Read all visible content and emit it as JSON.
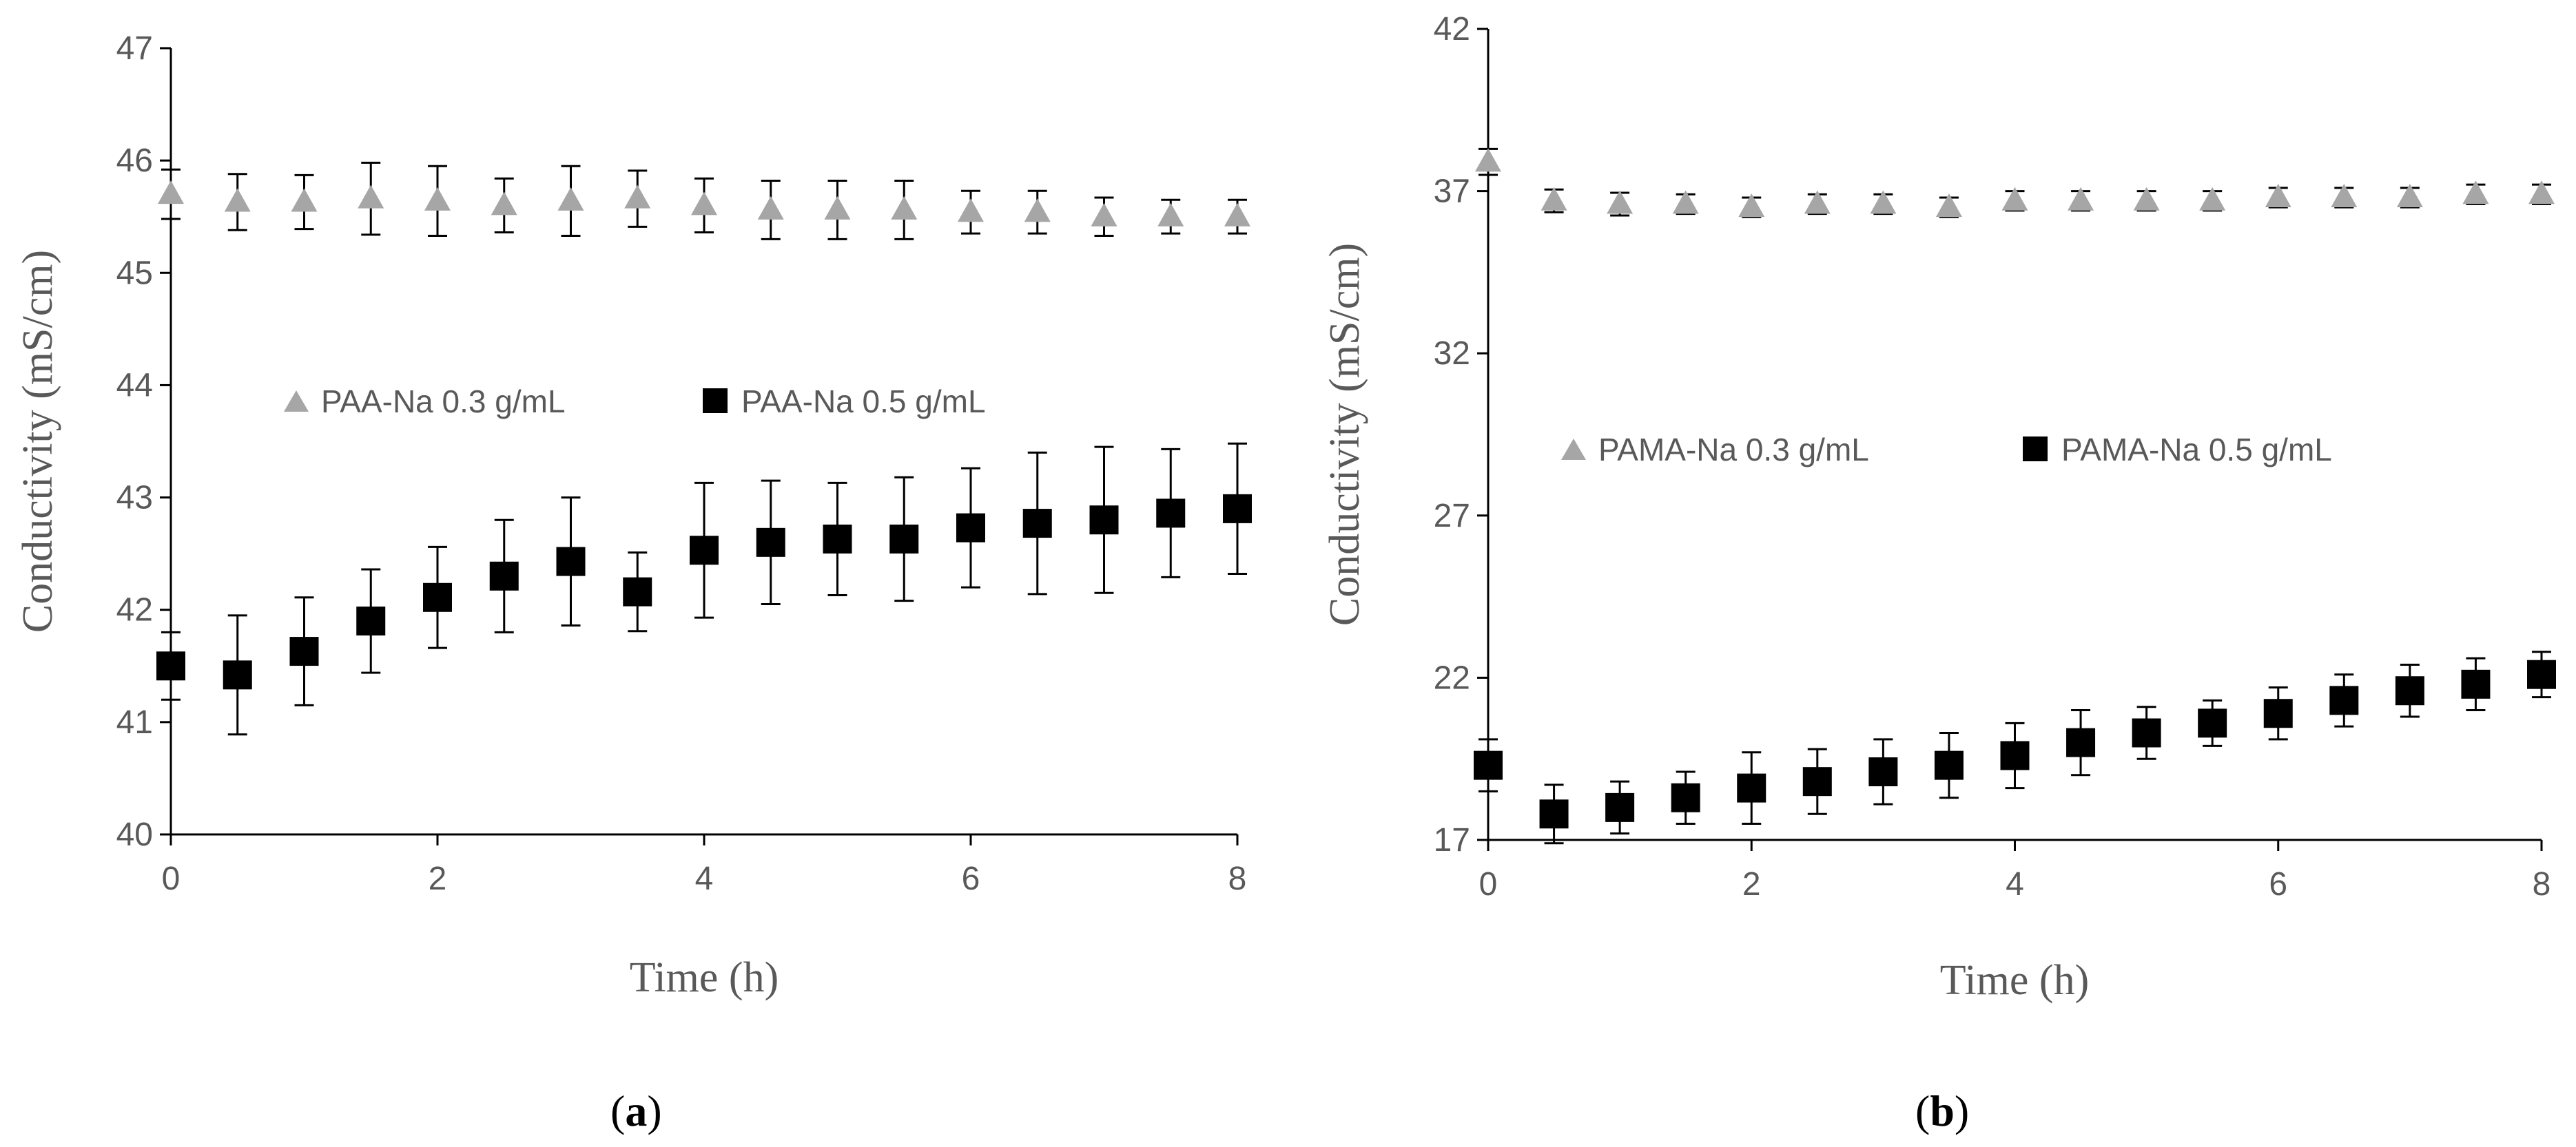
{
  "chart_data": [
    {
      "type": "scatter",
      "panel_label": "a",
      "xlabel": "Time (h)",
      "ylabel": "Conductivity (mS/cm)",
      "xlim": [
        0,
        8
      ],
      "ylim": [
        40,
        47
      ],
      "xticks": [
        0,
        2,
        4,
        6,
        8
      ],
      "yticks": [
        40,
        41,
        42,
        43,
        44,
        45,
        46,
        47
      ],
      "grid": false,
      "legend_position": "center",
      "x": [
        0,
        0.5,
        1,
        1.5,
        2,
        2.5,
        3,
        3.5,
        4,
        4.5,
        5,
        5.5,
        6,
        6.5,
        7,
        7.5,
        8
      ],
      "series": [
        {
          "name": "PAA-Na 0.3 g/mL",
          "marker": "triangle",
          "color": "#a6a6a6",
          "values": [
            45.7,
            45.63,
            45.63,
            45.66,
            45.64,
            45.6,
            45.64,
            45.66,
            45.6,
            45.56,
            45.56,
            45.56,
            45.54,
            45.54,
            45.5,
            45.5,
            45.5
          ],
          "errors": [
            0.22,
            0.25,
            0.24,
            0.32,
            0.31,
            0.24,
            0.31,
            0.25,
            0.24,
            0.26,
            0.26,
            0.26,
            0.19,
            0.19,
            0.17,
            0.15,
            0.15
          ]
        },
        {
          "name": "PAA-Na 0.5 g/mL",
          "marker": "square",
          "color": "#000000",
          "values": [
            41.5,
            41.42,
            41.63,
            41.9,
            42.11,
            42.3,
            42.43,
            42.16,
            42.53,
            42.6,
            42.63,
            42.63,
            42.73,
            42.77,
            42.8,
            42.86,
            42.9
          ],
          "errors": [
            0.3,
            0.53,
            0.48,
            0.46,
            0.45,
            0.5,
            0.57,
            0.35,
            0.6,
            0.55,
            0.5,
            0.55,
            0.53,
            0.63,
            0.65,
            0.57,
            0.58
          ]
        }
      ]
    },
    {
      "type": "scatter",
      "panel_label": "b",
      "xlabel": "Time (h)",
      "ylabel": "Conductivity (mS/cm)",
      "xlim": [
        0,
        8
      ],
      "ylim": [
        17,
        42
      ],
      "xticks": [
        0,
        2,
        4,
        6,
        8
      ],
      "yticks": [
        17,
        22,
        27,
        32,
        37,
        42
      ],
      "grid": false,
      "legend_position": "center",
      "x": [
        0,
        0.5,
        1,
        1.5,
        2,
        2.5,
        3,
        3.5,
        4,
        4.5,
        5,
        5.5,
        6,
        6.5,
        7,
        7.5,
        8
      ],
      "series": [
        {
          "name": "PAMA-Na 0.3 g/mL",
          "marker": "triangle",
          "color": "#a6a6a6",
          "values": [
            37.9,
            36.7,
            36.6,
            36.6,
            36.5,
            36.6,
            36.6,
            36.5,
            36.7,
            36.7,
            36.7,
            36.7,
            36.8,
            36.8,
            36.8,
            36.9,
            36.9
          ],
          "errors": [
            0.4,
            0.35,
            0.35,
            0.3,
            0.3,
            0.3,
            0.3,
            0.3,
            0.3,
            0.3,
            0.3,
            0.3,
            0.3,
            0.3,
            0.3,
            0.3,
            0.3
          ]
        },
        {
          "name": "PAMA-Na 0.5 g/mL",
          "marker": "square",
          "color": "#000000",
          "values": [
            19.3,
            17.8,
            18.0,
            18.3,
            18.6,
            18.8,
            19.1,
            19.3,
            19.6,
            20.0,
            20.3,
            20.6,
            20.9,
            21.3,
            21.6,
            21.8,
            22.1
          ],
          "errors": [
            0.8,
            0.9,
            0.8,
            0.8,
            1.1,
            1.0,
            1.0,
            1.0,
            1.0,
            1.0,
            0.8,
            0.7,
            0.8,
            0.8,
            0.8,
            0.8,
            0.7
          ]
        }
      ]
    }
  ]
}
